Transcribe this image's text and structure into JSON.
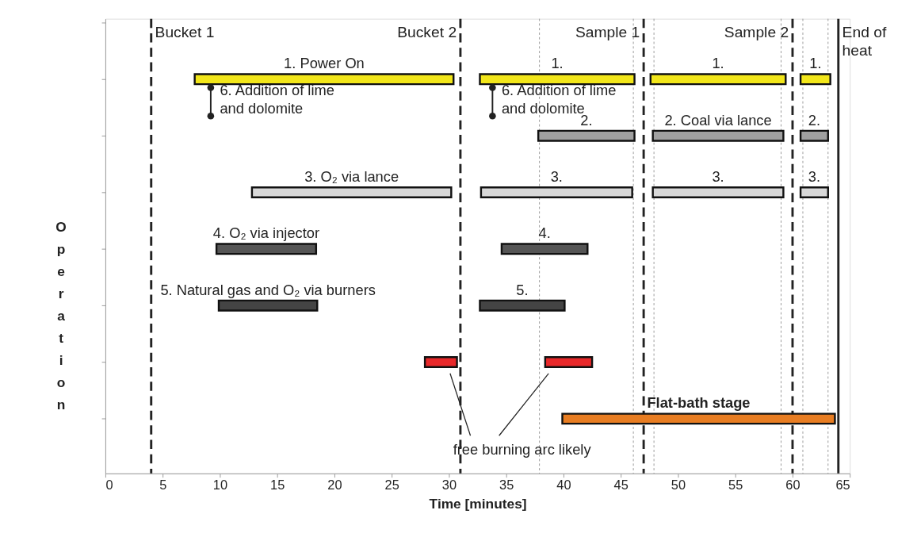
{
  "chart_data": {
    "type": "bar",
    "orientation": "horizontal",
    "categories": [
      "1. Power On",
      "2. Coal via lance",
      "3. O₂ via lance",
      "4. O₂ via injector",
      "5. Natural gas and O₂ via burners",
      null,
      "Flat-bath stage"
    ],
    "xlabel": "Time [minutes]",
    "ylabel": "Operation",
    "xlim": [
      0,
      65
    ],
    "xticks": [
      0,
      5,
      10,
      15,
      20,
      25,
      30,
      35,
      40,
      45,
      50,
      55,
      60,
      65
    ],
    "tick_labels": "x",
    "grid": false,
    "legend": false,
    "series": [
      {
        "values": [
          22.6,
          null,
          17.4,
          8.7,
          8.6,
          2.8,
          null
        ],
        "base": [
          7.8,
          null,
          12.8,
          9.7,
          9.9,
          27.9,
          null
        ],
        "colors": [
          "#f2e61a",
          null,
          "#d8d8d8",
          "#555555",
          "#444444",
          "#e8282a",
          null
        ]
      },
      {
        "values": [
          13.5,
          8.4,
          13.2,
          7.5,
          7.4,
          4.1,
          23.8
        ],
        "base": [
          32.7,
          37.8,
          32.8,
          34.6,
          32.7,
          38.4,
          39.9
        ],
        "colors": [
          "#f2e61a",
          "#a0a0a0",
          "#d8d8d8",
          "#555555",
          "#444444",
          "#e8282a",
          "#e87d22"
        ]
      },
      {
        "values": [
          11.8,
          11.4,
          11.4,
          null,
          null,
          null,
          null
        ],
        "base": [
          47.6,
          47.8,
          47.8,
          null,
          null,
          null,
          null
        ],
        "colors": [
          "#f2e61a",
          "#a0a0a0",
          "#d8d8d8",
          null,
          null,
          null,
          null
        ]
      },
      {
        "values": [
          2.6,
          2.4,
          2.4,
          null,
          null,
          null,
          null
        ],
        "base": [
          60.7,
          60.7,
          60.7,
          null,
          null,
          null,
          null
        ],
        "colors": [
          "#f2e61a",
          "#a0a0a0",
          "#d8d8d8",
          null,
          null,
          null,
          null
        ]
      }
    ],
    "ref_lines": [
      {
        "axis": "x",
        "value": 4,
        "label": "Bucket 1",
        "line_style": "dashed",
        "color": "#222222"
      },
      {
        "axis": "x",
        "value": 31,
        "label": "Bucket 2",
        "line_style": "dashed",
        "color": "#222222"
      },
      {
        "axis": "x",
        "value": 47,
        "label": "Sample 1",
        "line_style": "dashed",
        "color": "#222222"
      },
      {
        "axis": "x",
        "value": 60,
        "label": "Sample 2",
        "line_style": "dashed",
        "color": "#222222"
      },
      {
        "axis": "x",
        "value": 64,
        "label": "End of\nheat",
        "line_style": "solid",
        "color": "#222222"
      },
      {
        "axis": "x",
        "value": 37.9,
        "label": null,
        "line_style": "dotted",
        "color": "#999999"
      },
      {
        "axis": "x",
        "value": 46.1,
        "label": null,
        "line_style": "dotted",
        "color": "#999999"
      },
      {
        "axis": "x",
        "value": 47.9,
        "label": null,
        "line_style": "dotted",
        "color": "#999999"
      },
      {
        "axis": "x",
        "value": 59.0,
        "label": null,
        "line_style": "dotted",
        "color": "#999999"
      },
      {
        "axis": "x",
        "value": 60.9,
        "label": null,
        "line_style": "dotted",
        "color": "#999999"
      },
      {
        "axis": "x",
        "value": 63.1,
        "label": null,
        "line_style": "dotted",
        "color": "#999999"
      }
    ],
    "annotations": [
      {
        "text": "1.",
        "x": 39.45,
        "y": "1. Power On"
      },
      {
        "text": "1.",
        "x": 53.5,
        "y": "1. Power On"
      },
      {
        "text": "1.",
        "x": 62.0,
        "y": "1. Power On"
      },
      {
        "text": "2.",
        "x": 42.0,
        "y": "2. Coal via lance"
      },
      {
        "text": "2.",
        "x": 61.9,
        "y": "2. Coal via lance"
      },
      {
        "text": "3.",
        "x": 39.4,
        "y": "3. O₂ via lance"
      },
      {
        "text": "3.",
        "x": 53.5,
        "y": "3. O₂ via lance"
      },
      {
        "text": "3.",
        "x": 61.9,
        "y": "3. O₂ via lance"
      },
      {
        "text": "4.",
        "x": 38.35,
        "y": "4. O₂ via injector"
      },
      {
        "text": "5.",
        "x": 36.4,
        "y": "5. Natural gas and O₂ via burners"
      },
      "6. Addition of lime\nand dolomite",
      "6. Addition of lime\nand dolomite",
      "free burning arc likely"
    ]
  }
}
